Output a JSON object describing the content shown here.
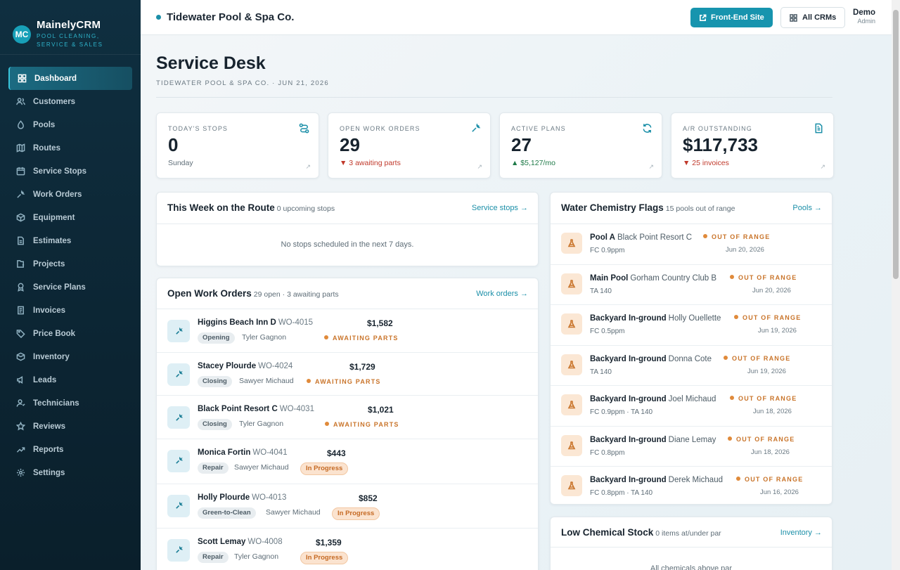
{
  "brand": {
    "logo_text": "MC",
    "name": "MainelyCRM",
    "tagline": "POOL CLEANING, SERVICE & SALES"
  },
  "sidebar": {
    "items": [
      {
        "label": "Dashboard",
        "icon": "grid-icon",
        "active": true
      },
      {
        "label": "Customers",
        "icon": "users-icon"
      },
      {
        "label": "Pools",
        "icon": "droplet-icon"
      },
      {
        "label": "Routes",
        "icon": "map-icon"
      },
      {
        "label": "Service Stops",
        "icon": "calendar-icon"
      },
      {
        "label": "Work Orders",
        "icon": "wrench-icon"
      },
      {
        "label": "Equipment",
        "icon": "box-icon"
      },
      {
        "label": "Estimates",
        "icon": "document-icon"
      },
      {
        "label": "Projects",
        "icon": "folder-icon"
      },
      {
        "label": "Service Plans",
        "icon": "badge-icon"
      },
      {
        "label": "Invoices",
        "icon": "invoice-icon"
      },
      {
        "label": "Price Book",
        "icon": "tag-icon"
      },
      {
        "label": "Inventory",
        "icon": "package-icon"
      },
      {
        "label": "Leads",
        "icon": "megaphone-icon"
      },
      {
        "label": "Technicians",
        "icon": "technician-icon"
      },
      {
        "label": "Reviews",
        "icon": "star-icon"
      },
      {
        "label": "Reports",
        "icon": "trend-icon"
      },
      {
        "label": "Settings",
        "icon": "gear-icon"
      }
    ]
  },
  "topbar": {
    "company": "Tidewater Pool & Spa Co.",
    "front_end_label": "Front-End Site",
    "all_crms_label": "All CRMs",
    "user_name": "Demo",
    "user_role": "Admin"
  },
  "page": {
    "title": "Service Desk",
    "subtitle": "TIDEWATER POOL & SPA CO. · JUN 21, 2026"
  },
  "stats": [
    {
      "label": "TODAY'S STOPS",
      "value": "0",
      "sub": "Sunday",
      "icon": "route-icon",
      "tone": "neutral"
    },
    {
      "label": "OPEN WORK ORDERS",
      "value": "29",
      "sub": "▼ 3 awaiting parts",
      "icon": "wrench-icon",
      "tone": "red"
    },
    {
      "label": "ACTIVE PLANS",
      "value": "27",
      "sub": "▲ $5,127/mo",
      "icon": "refresh-icon",
      "tone": "green"
    },
    {
      "label": "A/R OUTSTANDING",
      "value": "$117,733",
      "sub": "▼ 25 invoices",
      "icon": "document-icon",
      "tone": "red"
    }
  ],
  "week_route": {
    "title": "This Week on the Route",
    "count_text": "0 upcoming stops",
    "link": "Service stops →",
    "empty_text": "No stops scheduled in the next 7 days."
  },
  "work_orders": {
    "title": "Open Work Orders",
    "count_text": "29 open · 3 awaiting parts",
    "link": "Work orders →",
    "rows": [
      {
        "customer": "Higgins Beach Inn D",
        "number": "WO-4015",
        "type": "Opening",
        "tech": "Tyler Gagnon",
        "amount": "$1,582",
        "status": "AWAITING PARTS",
        "status_style": "dot"
      },
      {
        "customer": "Stacey Plourde",
        "number": "WO-4024",
        "type": "Closing",
        "tech": "Sawyer Michaud",
        "amount": "$1,729",
        "status": "AWAITING PARTS",
        "status_style": "dot"
      },
      {
        "customer": "Black Point Resort C",
        "number": "WO-4031",
        "type": "Closing",
        "tech": "Tyler Gagnon",
        "amount": "$1,021",
        "status": "AWAITING PARTS",
        "status_style": "dot"
      },
      {
        "customer": "Monica Fortin",
        "number": "WO-4041",
        "type": "Repair",
        "tech": "Sawyer Michaud",
        "amount": "$443",
        "status": "In Progress",
        "status_style": "pill"
      },
      {
        "customer": "Holly Plourde",
        "number": "WO-4013",
        "type": "Green-to-Clean",
        "tech": "Sawyer Michaud",
        "amount": "$852",
        "status": "In Progress",
        "status_style": "pill"
      },
      {
        "customer": "Scott Lemay",
        "number": "WO-4008",
        "type": "Repair",
        "tech": "Tyler Gagnon",
        "amount": "$1,359",
        "status": "In Progress",
        "status_style": "pill"
      }
    ]
  },
  "water_chem": {
    "title": "Water Chemistry Flags",
    "count_text": "15 pools out of range",
    "link": "Pools →",
    "rows": [
      {
        "pool": "Pool A",
        "customer": "Black Point Resort C",
        "reading": "FC 0.9ppm",
        "flag": "OUT OF RANGE",
        "date": "Jun 20, 2026"
      },
      {
        "pool": "Main Pool",
        "customer": "Gorham Country Club B",
        "reading": "TA 140",
        "flag": "OUT OF RANGE",
        "date": "Jun 20, 2026"
      },
      {
        "pool": "Backyard In-ground",
        "customer": "Holly Ouellette",
        "reading": "FC 0.5ppm",
        "flag": "OUT OF RANGE",
        "date": "Jun 19, 2026"
      },
      {
        "pool": "Backyard In-ground",
        "customer": "Donna Cote",
        "reading": "TA 140",
        "flag": "OUT OF RANGE",
        "date": "Jun 19, 2026"
      },
      {
        "pool": "Backyard In-ground",
        "customer": "Joel Michaud",
        "reading": "FC 0.9ppm · TA 140",
        "flag": "OUT OF RANGE",
        "date": "Jun 18, 2026"
      },
      {
        "pool": "Backyard In-ground",
        "customer": "Diane Lemay",
        "reading": "FC 0.8ppm",
        "flag": "OUT OF RANGE",
        "date": "Jun 18, 2026"
      },
      {
        "pool": "Backyard In-ground",
        "customer": "Derek Michaud",
        "reading": "FC 0.8ppm · TA 140",
        "flag": "OUT OF RANGE",
        "date": "Jun 16, 2026"
      }
    ]
  },
  "low_stock": {
    "title": "Low Chemical Stock",
    "count_text": "0 items at/under par",
    "link": "Inventory →",
    "empty_text": "All chemicals above par"
  }
}
